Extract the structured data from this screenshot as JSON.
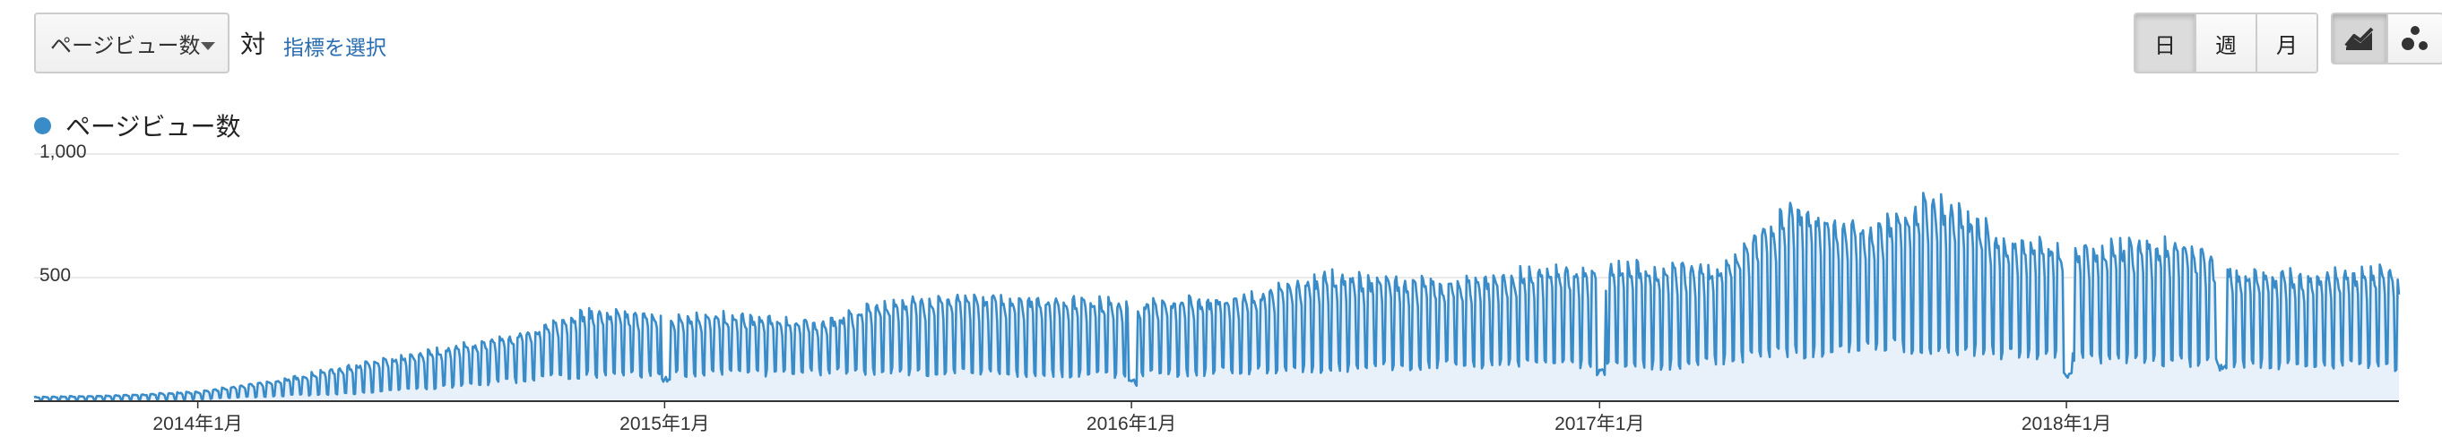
{
  "toolbar": {
    "metric_select_value": "ページビュー数",
    "vs_label": "対",
    "choose_metric_link": "指標を選択",
    "period_buttons": [
      "日",
      "週",
      "月"
    ],
    "active_period": "日",
    "view_buttons": [
      {
        "icon": "line-chart-icon",
        "active": true
      },
      {
        "icon": "motion-chart-icon",
        "active": false
      }
    ]
  },
  "legend": {
    "series_name": "ページビュー数",
    "color": "#3a8cc8"
  },
  "chart_data": {
    "type": "area",
    "title": "",
    "xlabel": "",
    "ylabel": "",
    "ylim": [
      0,
      1000
    ],
    "y_ticks": [
      {
        "value": 1000,
        "label": "1,000"
      },
      {
        "value": 500,
        "label": "500"
      }
    ],
    "x_ticks": [
      {
        "value": "2014-01-01",
        "label": "2014年1月"
      },
      {
        "value": "2015-01-01",
        "label": "2015年1月"
      },
      {
        "value": "2016-01-01",
        "label": "2016年1月"
      },
      {
        "value": "2017-01-01",
        "label": "2017年1月"
      },
      {
        "value": "2018-01-01",
        "label": "2018年1月"
      }
    ],
    "x_range": [
      "2013-08-26",
      "2018-09-18"
    ],
    "grid": true,
    "legend_position": "top-left",
    "series": [
      {
        "name": "ページビュー数",
        "color": "#3a8cc8",
        "fill": "#e8f1fa",
        "frequency": "daily",
        "start": "2013-08-26",
        "weekday_peaks": [
          {
            "date": "2013-09-01",
            "value": 18
          },
          {
            "date": "2013-11-01",
            "value": 25
          },
          {
            "date": "2014-01-01",
            "value": 40
          },
          {
            "date": "2014-03-01",
            "value": 85
          },
          {
            "date": "2014-05-01",
            "value": 150
          },
          {
            "date": "2014-07-01",
            "value": 210
          },
          {
            "date": "2014-09-01",
            "value": 270
          },
          {
            "date": "2014-11-01",
            "value": 380
          },
          {
            "date": "2015-01-01",
            "value": 360
          },
          {
            "date": "2015-03-01",
            "value": 360
          },
          {
            "date": "2015-05-01",
            "value": 330
          },
          {
            "date": "2015-07-01",
            "value": 430
          },
          {
            "date": "2015-10-01",
            "value": 440
          },
          {
            "date": "2016-01-01",
            "value": 420
          },
          {
            "date": "2016-04-01",
            "value": 440
          },
          {
            "date": "2016-06-01",
            "value": 530
          },
          {
            "date": "2016-09-01",
            "value": 500
          },
          {
            "date": "2016-12-01",
            "value": 560
          },
          {
            "date": "2017-02-01",
            "value": 570
          },
          {
            "date": "2017-04-01",
            "value": 560
          },
          {
            "date": "2017-06-01",
            "value": 820
          },
          {
            "date": "2017-08-01",
            "value": 720
          },
          {
            "date": "2017-09-20",
            "value": 860
          },
          {
            "date": "2017-11-15",
            "value": 680
          },
          {
            "date": "2018-01-01",
            "value": 640
          },
          {
            "date": "2018-02-15",
            "value": 660
          },
          {
            "date": "2018-04-01",
            "value": 670
          },
          {
            "date": "2018-05-15",
            "value": 540
          },
          {
            "date": "2018-07-15",
            "value": 530
          },
          {
            "date": "2018-09-10",
            "value": 560
          },
          {
            "date": "2018-09-18",
            "value": 480
          }
        ],
        "weekend_lows": [
          {
            "date": "2013-09-01",
            "value": 3
          },
          {
            "date": "2014-01-01",
            "value": 8
          },
          {
            "date": "2014-06-01",
            "value": 40
          },
          {
            "date": "2014-11-01",
            "value": 110
          },
          {
            "date": "2015-06-01",
            "value": 120
          },
          {
            "date": "2016-01-01",
            "value": 110
          },
          {
            "date": "2016-09-01",
            "value": 150
          },
          {
            "date": "2017-03-01",
            "value": 150
          },
          {
            "date": "2017-08-01",
            "value": 230
          },
          {
            "date": "2018-02-01",
            "value": 170
          },
          {
            "date": "2018-09-18",
            "value": 140
          }
        ],
        "notable_dips": [
          {
            "date": "2015-01-02",
            "value": 70
          },
          {
            "date": "2016-01-02",
            "value": 60
          },
          {
            "date": "2017-01-02",
            "value": 100
          },
          {
            "date": "2018-01-02",
            "value": 90
          },
          {
            "date": "2018-05-03",
            "value": 120
          }
        ]
      }
    ]
  }
}
